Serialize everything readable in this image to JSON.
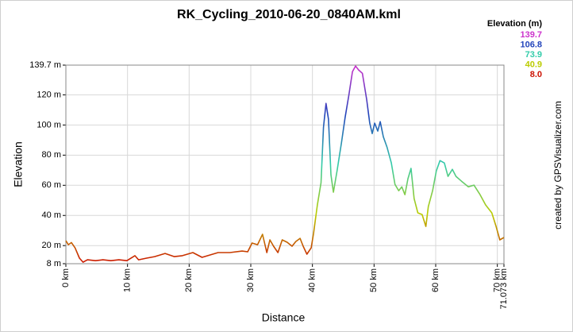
{
  "chart_data": {
    "type": "line",
    "title": "RK_Cycling_2010-06-20_0840AM.kml",
    "x_label": "Distance",
    "y_label": "Elevation",
    "credit": "created by GPSVisualizer.com",
    "grid": true,
    "xlim": [
      0,
      71.073
    ],
    "ylim": [
      8,
      139.7
    ],
    "xticks": [
      {
        "value": 0,
        "label": "0 km"
      },
      {
        "value": 10,
        "label": "10 km"
      },
      {
        "value": 20,
        "label": "20 km"
      },
      {
        "value": 30,
        "label": "30 km"
      },
      {
        "value": 40,
        "label": "40 km"
      },
      {
        "value": 50,
        "label": "50 km"
      },
      {
        "value": 60,
        "label": "60 km"
      },
      {
        "value": 70,
        "label": "70 km"
      },
      {
        "value": 71.073,
        "label": "71.073 km"
      }
    ],
    "yticks": [
      {
        "value": 8,
        "label": "8 m"
      },
      {
        "value": 20,
        "label": "20 m"
      },
      {
        "value": 40,
        "label": "40 m"
      },
      {
        "value": 60,
        "label": "60 m"
      },
      {
        "value": 80,
        "label": "80 m"
      },
      {
        "value": 100,
        "label": "100 m"
      },
      {
        "value": 120,
        "label": "120 m"
      },
      {
        "value": 139.7,
        "label": "139.7 m"
      }
    ],
    "colorbar": {
      "title": "Elevation (m)",
      "stops": [
        {
          "value": 139.7,
          "color": "#cc33cc"
        },
        {
          "value": 106.8,
          "color": "#2244bb"
        },
        {
          "value": 73.9,
          "color": "#33ccaa"
        },
        {
          "value": 40.9,
          "color": "#bbcc00"
        },
        {
          "value": 8,
          "label": "8.0",
          "color": "#cc1100"
        }
      ]
    },
    "x": [
      0,
      0.4,
      0.9,
      1.5,
      2.2,
      2.8,
      3.5,
      4.8,
      6,
      7.3,
      8.6,
      9.9,
      11.2,
      11.8,
      13.1,
      14.4,
      16.1,
      17.6,
      18.9,
      20.6,
      22.1,
      23.4,
      24.7,
      26.6,
      28.6,
      29.5,
      30.2,
      31.1,
      31.9,
      32.6,
      33.1,
      33.7,
      34.4,
      35.1,
      35.9,
      36.7,
      37.3,
      38,
      38.5,
      39.1,
      39.8,
      40.2,
      40.8,
      41.4,
      41.8,
      42.2,
      42.6,
      43,
      43.4,
      44,
      44.7,
      45.3,
      45.9,
      46.5,
      47,
      47.5,
      48.1,
      48.8,
      49.3,
      49.7,
      50.1,
      50.6,
      51,
      51.5,
      52.1,
      52.8,
      53.4,
      54,
      54.5,
      55,
      55.5,
      56,
      56.5,
      57.1,
      57.8,
      58.4,
      58.8,
      59.5,
      60.1,
      60.7,
      61.4,
      62,
      62.7,
      63.3,
      64.2,
      65.3,
      66.2,
      67.2,
      68.1,
      69.1,
      69.8,
      70.4,
      71.07
    ],
    "values": [
      23.3,
      20.6,
      22,
      18.5,
      11.7,
      9,
      10.6,
      10,
      10.6,
      10,
      10.6,
      10,
      13.3,
      10.6,
      11.7,
      12.7,
      14.8,
      12.7,
      13.3,
      15.4,
      12.2,
      13.8,
      15.4,
      15.4,
      16.4,
      15.9,
      21.7,
      20.6,
      27.5,
      15.4,
      23.8,
      19.6,
      15.4,
      23.8,
      22.2,
      19.6,
      22.7,
      24.8,
      19.6,
      14.3,
      18.5,
      28.5,
      47,
      61.7,
      98.5,
      114.3,
      103.8,
      67,
      55.4,
      69.6,
      88,
      104.8,
      119.6,
      135.4,
      139.1,
      136.5,
      134.3,
      117,
      101.2,
      94.3,
      101.2,
      95.9,
      102.2,
      92.2,
      85.4,
      74.8,
      60.6,
      56.4,
      59,
      53.8,
      64.3,
      71.2,
      51.2,
      41.7,
      40.6,
      32.7,
      45.9,
      56.4,
      69.6,
      76.4,
      74.8,
      65.9,
      70.6,
      65.9,
      62.7,
      59,
      60.1,
      53.8,
      47,
      41.7,
      32.7,
      23.8,
      25.4
    ]
  }
}
